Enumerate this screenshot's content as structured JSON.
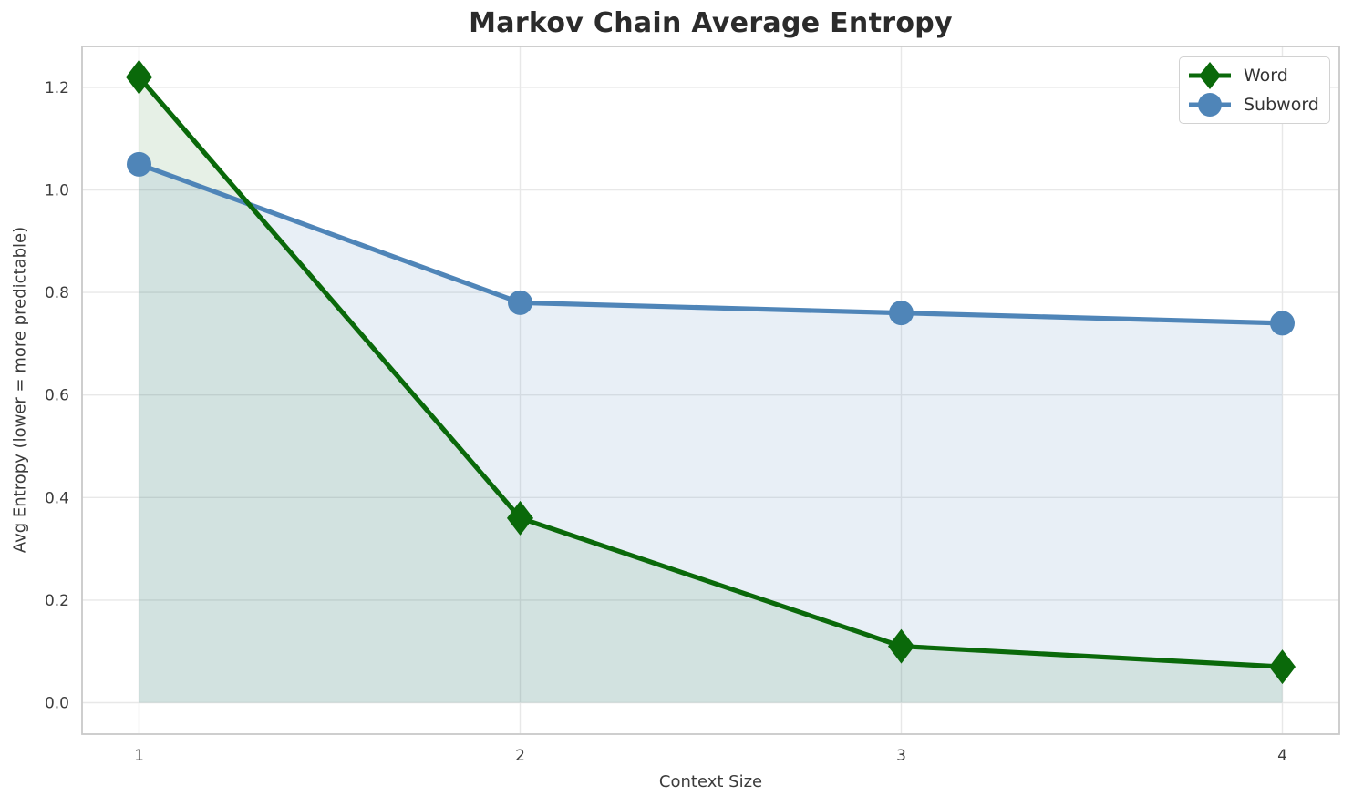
{
  "chart_data": {
    "type": "line",
    "title": "Markov Chain Average Entropy",
    "xlabel": "Context Size",
    "ylabel": "Avg Entropy (lower = more predictable)",
    "categories": [
      1,
      2,
      3,
      4
    ],
    "xticks": [
      "1",
      "2",
      "3",
      "4"
    ],
    "yticks": [
      "0.0",
      "0.2",
      "0.4",
      "0.6",
      "0.8",
      "1.0",
      "1.2"
    ],
    "ylim": [
      0.0,
      1.2
    ],
    "grid": true,
    "legend_position": "upper right",
    "series": [
      {
        "name": "Word",
        "marker": "diamond",
        "color": "#0a690a",
        "fill_color": "rgba(13, 103, 13, 0.10)",
        "values": [
          1.22,
          0.36,
          0.11,
          0.07
        ]
      },
      {
        "name": "Subword",
        "marker": "circle",
        "color": "#4f85b8",
        "fill_color": "rgba(79, 133, 184, 0.13)",
        "values": [
          1.05,
          0.78,
          0.76,
          0.74
        ]
      }
    ]
  },
  "legend": {
    "items": [
      {
        "label": "Word"
      },
      {
        "label": "Subword"
      }
    ]
  },
  "colors": {
    "word_green": "#0a690a",
    "subword_blue": "#4f85b8",
    "grid_line": "#e8e8e8",
    "spine": "#c9c9c9",
    "title_text": "#2b2b2b",
    "tick_text": "#3d3d3d",
    "legend_text": "#333333",
    "background": "#ffffff"
  }
}
